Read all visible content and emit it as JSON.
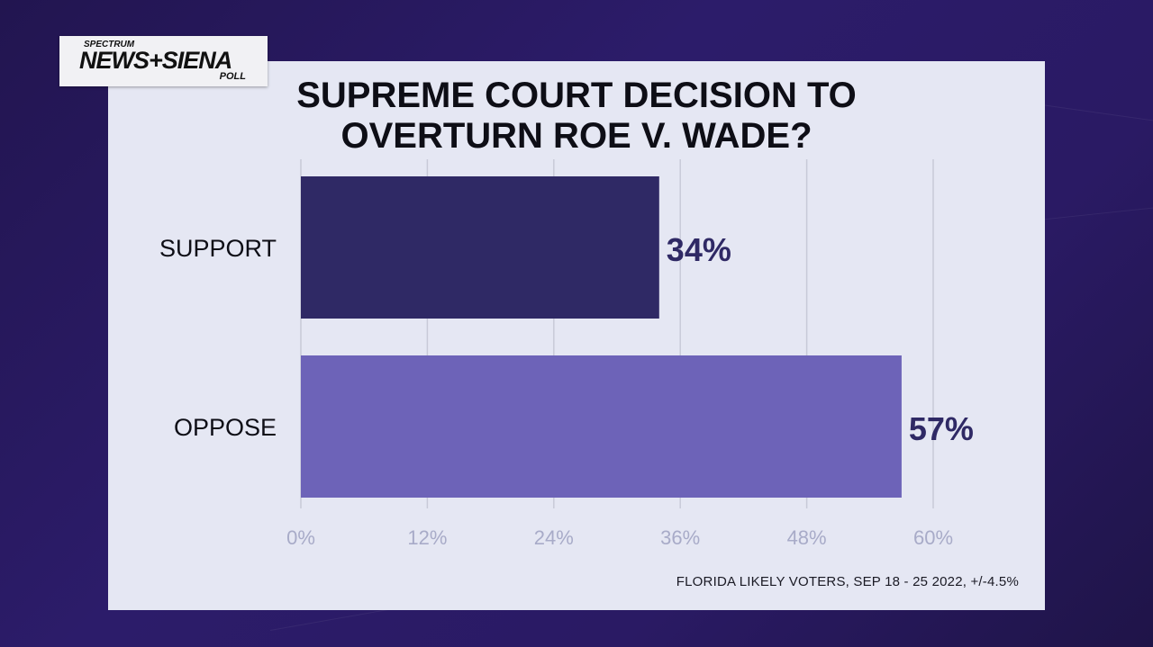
{
  "logo": {
    "top_text": "SPECTRUM",
    "brand_text": "NEWS+SIENA",
    "sub_text": "POLL"
  },
  "title_lines": [
    "SUPREME COURT DECISION TO",
    "OVERTURN ROE V. WADE?"
  ],
  "footnote": "FLORIDA LIKELY VOTERS, SEP 18 - 25 2022, +/-4.5%",
  "colors": {
    "background": "#2a1a64",
    "panel": "#e5e7f3",
    "support_bar": "#2f2965",
    "oppose_bar": "#6d63b8",
    "value_label": "#2f2965",
    "tick_label": "#a8abc8",
    "gridline": "#c8cad8"
  },
  "chart_data": {
    "type": "bar",
    "orientation": "horizontal",
    "title": "SUPREME COURT DECISION TO OVERTURN ROE V. WADE?",
    "categories": [
      "SUPPORT",
      "OPPOSE"
    ],
    "values": [
      34,
      57
    ],
    "value_labels": [
      "34%",
      "57%"
    ],
    "xlim": [
      0,
      60
    ],
    "x_ticks": [
      0,
      12,
      24,
      36,
      48,
      60
    ],
    "x_tick_labels": [
      "0%",
      "12%",
      "24%",
      "36%",
      "48%",
      "60%"
    ],
    "grid": true,
    "legend": "none"
  }
}
